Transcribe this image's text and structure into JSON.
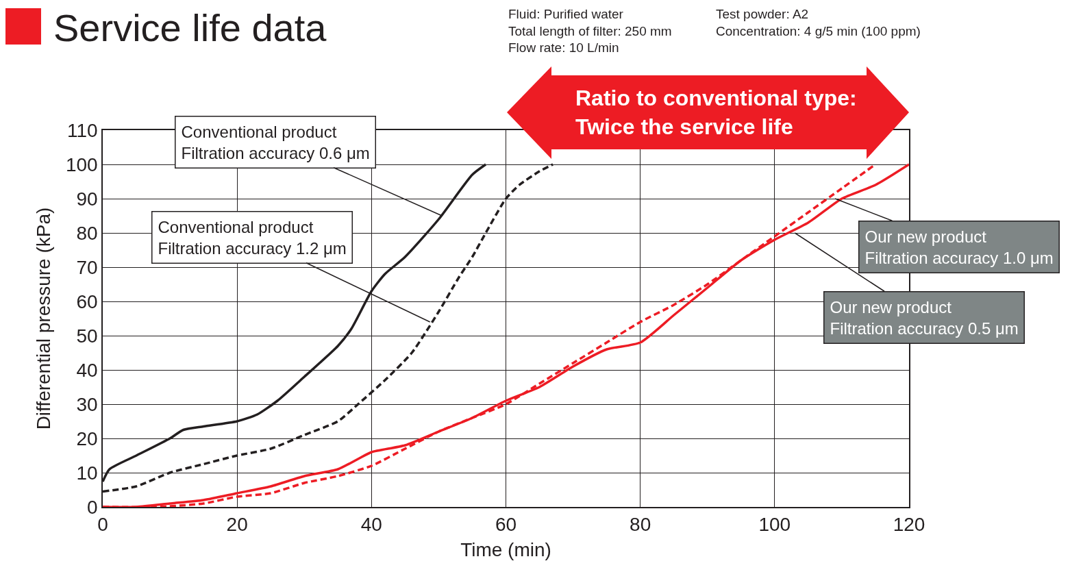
{
  "chart_data": {
    "type": "line",
    "title": "Service life data",
    "xlabel": "Time (min)",
    "ylabel": "Differential pressure (kPa)",
    "xlim": [
      0,
      120
    ],
    "xticks": [
      0,
      20,
      40,
      60,
      80,
      100,
      120
    ],
    "ylim": [
      0,
      110
    ],
    "yticks": [
      0,
      10,
      20,
      30,
      40,
      50,
      60,
      70,
      80,
      90,
      100,
      110
    ],
    "grid": true,
    "series": [
      {
        "color": "#231f20",
        "line_style": "solid",
        "x": [
          0,
          1,
          5,
          10,
          12,
          15,
          20,
          23,
          26,
          30,
          35,
          37,
          40,
          42,
          45,
          50,
          55,
          57
        ],
        "values": [
          7.4,
          11,
          15,
          20,
          22.5,
          23.5,
          25,
          27,
          31,
          38,
          47,
          52,
          63,
          68,
          73,
          84,
          97,
          100
        ]
      },
      {
        "color": "#231f20",
        "line_style": "dashed",
        "x": [
          0,
          5,
          10,
          15,
          20,
          25,
          30,
          35,
          38,
          42,
          46,
          50,
          53,
          55,
          57,
          60,
          62,
          65,
          67
        ],
        "values": [
          4.5,
          6,
          10,
          12.5,
          15,
          17,
          21,
          25,
          30,
          37,
          45,
          57,
          67,
          73,
          80,
          90,
          94,
          98,
          100
        ]
      },
      {
        "color": "#ed1c24",
        "line_style": "solid",
        "x": [
          0,
          5,
          10,
          15,
          20,
          25,
          30,
          35,
          38,
          40,
          45,
          50,
          55,
          60,
          65,
          70,
          75,
          80,
          85,
          90,
          95,
          100,
          105,
          110,
          115,
          120
        ],
        "values": [
          0,
          0,
          1,
          2,
          4,
          6,
          9,
          11,
          14,
          16,
          18,
          22,
          26,
          31,
          35,
          41,
          46,
          48,
          56,
          64,
          72,
          78,
          83,
          90,
          94,
          100
        ]
      },
      {
        "color": "#ed1c24",
        "line_style": "dashed",
        "x": [
          0,
          8,
          15,
          20,
          25,
          30,
          35,
          40,
          45,
          50,
          55,
          60,
          65,
          70,
          75,
          80,
          85,
          90,
          95,
          100,
          105,
          110,
          115
        ],
        "values": [
          0,
          0,
          1,
          3,
          4,
          7,
          9,
          12,
          17,
          22,
          26,
          30,
          36,
          42,
          48,
          54,
          59,
          65,
          72,
          79,
          86,
          93,
          100
        ]
      }
    ],
    "annotations": [
      "Fluid: Purified water\nTotal length of filter: 250 mm\nFlow rate: 10 L/min",
      "Test powder: A2\nConcentration: 4 g/5 min (100 ppm)",
      "Ratio to conventional type:\nTwice the service life",
      {
        "text": "Conventional product\nFiltration accuracy 0.6 μm",
        "x": 50.5,
        "y": 85
      },
      {
        "text": "Conventional product\nFiltration accuracy 1.2 μm",
        "x": 48.7,
        "y": 54
      },
      {
        "text": "Our new product\nFiltration accuracy 1.0 μm",
        "x": 109,
        "y": 90
      },
      {
        "text": "Our new product\nFiltration accuracy 0.5 μm",
        "x": 103,
        "y": 80
      }
    ]
  }
}
